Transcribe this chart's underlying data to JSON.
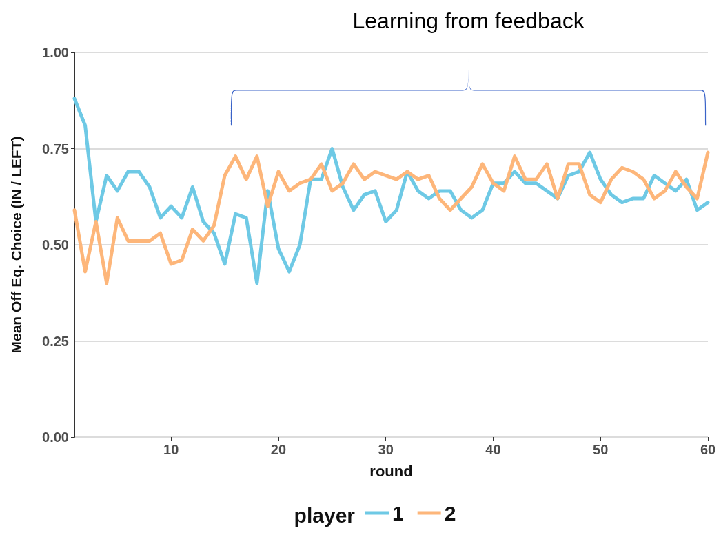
{
  "chart_data": {
    "type": "line",
    "xlabel": "round",
    "ylabel": "Mean Off Eq. Choice (IN / LEFT)",
    "legend_title": "player",
    "legend": "bottom",
    "grid": "y",
    "marker": "none",
    "line_style": "solid",
    "annotations": [
      "Learning from feedback"
    ],
    "x": [
      1,
      2,
      3,
      4,
      5,
      6,
      7,
      8,
      9,
      10,
      11,
      12,
      13,
      14,
      15,
      16,
      17,
      18,
      19,
      20,
      21,
      22,
      23,
      24,
      25,
      26,
      27,
      28,
      29,
      30,
      31,
      32,
      33,
      34,
      35,
      36,
      37,
      38,
      39,
      40,
      41,
      42,
      43,
      44,
      45,
      46,
      47,
      48,
      49,
      50,
      51,
      52,
      53,
      54,
      55,
      56,
      57,
      58,
      59,
      60
    ],
    "xlim": [
      1,
      60
    ],
    "xticks": [
      10,
      20,
      30,
      40,
      50,
      60
    ],
    "ylim": [
      0,
      1
    ],
    "yticks": [
      {
        "value": 0,
        "label": "0.00"
      },
      {
        "value": 0.25,
        "label": "0.25"
      },
      {
        "value": 0.5,
        "label": "0.50"
      },
      {
        "value": 0.75,
        "label": "0.75"
      },
      {
        "value": 1,
        "label": "1.00"
      }
    ],
    "series": [
      {
        "name": "1",
        "color": "#6ec9e5",
        "values": [
          0.88,
          0.81,
          0.56,
          0.68,
          0.64,
          0.69,
          0.69,
          0.65,
          0.57,
          0.6,
          0.57,
          0.65,
          0.56,
          0.53,
          0.45,
          0.58,
          0.57,
          0.4,
          0.64,
          0.49,
          0.43,
          0.5,
          0.67,
          0.67,
          0.75,
          0.65,
          0.59,
          0.63,
          0.64,
          0.56,
          0.59,
          0.69,
          0.64,
          0.62,
          0.64,
          0.64,
          0.59,
          0.57,
          0.59,
          0.66,
          0.66,
          0.69,
          0.66,
          0.66,
          0.64,
          0.62,
          0.68,
          0.69,
          0.74,
          0.67,
          0.63,
          0.61,
          0.62,
          0.62,
          0.68,
          0.66,
          0.64,
          0.67,
          0.59,
          0.61
        ]
      },
      {
        "name": "2",
        "color": "#fdb67a",
        "values": [
          0.59,
          0.43,
          0.56,
          0.4,
          0.57,
          0.51,
          0.51,
          0.51,
          0.53,
          0.45,
          0.46,
          0.54,
          0.51,
          0.55,
          0.68,
          0.73,
          0.67,
          0.73,
          0.6,
          0.69,
          0.64,
          0.66,
          0.67,
          0.71,
          0.64,
          0.66,
          0.71,
          0.67,
          0.69,
          0.68,
          0.67,
          0.69,
          0.67,
          0.68,
          0.62,
          0.59,
          0.62,
          0.65,
          0.71,
          0.66,
          0.64,
          0.73,
          0.67,
          0.67,
          0.71,
          0.62,
          0.71,
          0.71,
          0.63,
          0.61,
          0.67,
          0.7,
          0.69,
          0.67,
          0.62,
          0.64,
          0.69,
          0.65,
          0.62,
          0.74
        ]
      }
    ]
  }
}
